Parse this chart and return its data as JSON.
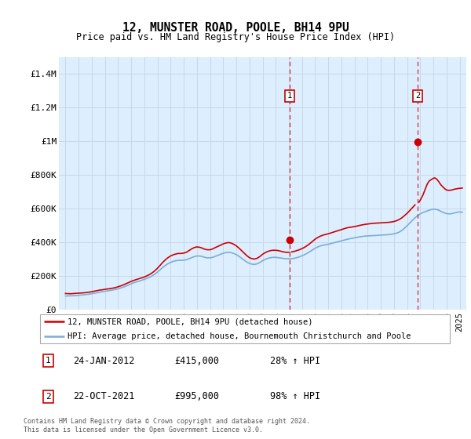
{
  "title": "12, MUNSTER ROAD, POOLE, BH14 9PU",
  "subtitle": "Price paid vs. HM Land Registry's House Price Index (HPI)",
  "legend_line1": "12, MUNSTER ROAD, POOLE, BH14 9PU (detached house)",
  "legend_line2": "HPI: Average price, detached house, Bournemouth Christchurch and Poole",
  "annotation1_date": "24-JAN-2012",
  "annotation1_price": "£415,000",
  "annotation1_hpi": "28% ↑ HPI",
  "annotation2_date": "22-OCT-2021",
  "annotation2_price": "£995,000",
  "annotation2_hpi": "98% ↑ HPI",
  "footer": "Contains HM Land Registry data © Crown copyright and database right 2024.\nThis data is licensed under the Open Government Licence v3.0.",
  "red_color": "#cc0000",
  "blue_color": "#7aaed6",
  "shade_color": "#ddeeff",
  "grid_color": "#c8d8e8",
  "ytick_labels": [
    "£0",
    "£200K",
    "£400K",
    "£600K",
    "£800K",
    "£1M",
    "£1.2M",
    "£1.4M"
  ],
  "yticks": [
    0,
    200000,
    400000,
    600000,
    800000,
    1000000,
    1200000,
    1400000
  ],
  "ylim": [
    0,
    1500000
  ],
  "xmin": 1994.5,
  "xmax": 2025.5,
  "sale1_x": 2012.07,
  "sale1_y": 415000,
  "sale2_x": 2021.81,
  "sale2_y": 995000,
  "shade_start": 2012.07,
  "hpi_red_line": [
    [
      1995.0,
      95000
    ],
    [
      1995.2,
      94000
    ],
    [
      1995.4,
      93500
    ],
    [
      1995.6,
      95000
    ],
    [
      1995.8,
      96000
    ],
    [
      1996.0,
      97000
    ],
    [
      1996.2,
      98000
    ],
    [
      1996.4,
      99000
    ],
    [
      1996.6,
      101000
    ],
    [
      1996.8,
      103000
    ],
    [
      1997.0,
      106000
    ],
    [
      1997.2,
      109000
    ],
    [
      1997.4,
      112000
    ],
    [
      1997.6,
      115000
    ],
    [
      1997.8,
      117000
    ],
    [
      1998.0,
      120000
    ],
    [
      1998.2,
      122000
    ],
    [
      1998.4,
      124000
    ],
    [
      1998.6,
      127000
    ],
    [
      1998.8,
      130000
    ],
    [
      1999.0,
      135000
    ],
    [
      1999.2,
      140000
    ],
    [
      1999.4,
      146000
    ],
    [
      1999.6,
      153000
    ],
    [
      1999.8,
      160000
    ],
    [
      2000.0,
      167000
    ],
    [
      2000.2,
      173000
    ],
    [
      2000.4,
      178000
    ],
    [
      2000.6,
      183000
    ],
    [
      2000.8,
      188000
    ],
    [
      2001.0,
      193000
    ],
    [
      2001.2,
      200000
    ],
    [
      2001.4,
      208000
    ],
    [
      2001.6,
      218000
    ],
    [
      2001.8,
      230000
    ],
    [
      2002.0,
      245000
    ],
    [
      2002.2,
      262000
    ],
    [
      2002.4,
      280000
    ],
    [
      2002.6,
      295000
    ],
    [
      2002.8,
      308000
    ],
    [
      2003.0,
      318000
    ],
    [
      2003.2,
      325000
    ],
    [
      2003.4,
      330000
    ],
    [
      2003.6,
      333000
    ],
    [
      2003.8,
      333000
    ],
    [
      2004.0,
      335000
    ],
    [
      2004.2,
      340000
    ],
    [
      2004.4,
      350000
    ],
    [
      2004.6,
      360000
    ],
    [
      2004.8,
      368000
    ],
    [
      2005.0,
      372000
    ],
    [
      2005.2,
      370000
    ],
    [
      2005.4,
      365000
    ],
    [
      2005.6,
      358000
    ],
    [
      2005.8,
      355000
    ],
    [
      2006.0,
      355000
    ],
    [
      2006.2,
      360000
    ],
    [
      2006.4,
      368000
    ],
    [
      2006.6,
      375000
    ],
    [
      2006.8,
      382000
    ],
    [
      2007.0,
      390000
    ],
    [
      2007.2,
      395000
    ],
    [
      2007.4,
      398000
    ],
    [
      2007.6,
      395000
    ],
    [
      2007.8,
      388000
    ],
    [
      2008.0,
      378000
    ],
    [
      2008.2,
      365000
    ],
    [
      2008.4,
      350000
    ],
    [
      2008.6,
      335000
    ],
    [
      2008.8,
      320000
    ],
    [
      2009.0,
      308000
    ],
    [
      2009.2,
      302000
    ],
    [
      2009.4,
      300000
    ],
    [
      2009.6,
      305000
    ],
    [
      2009.8,
      315000
    ],
    [
      2010.0,
      328000
    ],
    [
      2010.2,
      338000
    ],
    [
      2010.4,
      345000
    ],
    [
      2010.6,
      350000
    ],
    [
      2010.8,
      352000
    ],
    [
      2011.0,
      352000
    ],
    [
      2011.2,
      350000
    ],
    [
      2011.4,
      346000
    ],
    [
      2011.6,
      342000
    ],
    [
      2011.8,
      340000
    ],
    [
      2012.0,
      340000
    ],
    [
      2012.07,
      415000
    ],
    [
      2012.2,
      342000
    ],
    [
      2012.4,
      345000
    ],
    [
      2012.6,
      350000
    ],
    [
      2012.8,
      355000
    ],
    [
      2013.0,
      362000
    ],
    [
      2013.2,
      370000
    ],
    [
      2013.4,
      380000
    ],
    [
      2013.6,
      392000
    ],
    [
      2013.8,
      405000
    ],
    [
      2014.0,
      418000
    ],
    [
      2014.2,
      428000
    ],
    [
      2014.4,
      436000
    ],
    [
      2014.6,
      442000
    ],
    [
      2014.8,
      446000
    ],
    [
      2015.0,
      450000
    ],
    [
      2015.2,
      455000
    ],
    [
      2015.4,
      460000
    ],
    [
      2015.6,
      465000
    ],
    [
      2015.8,
      470000
    ],
    [
      2016.0,
      475000
    ],
    [
      2016.2,
      480000
    ],
    [
      2016.4,
      485000
    ],
    [
      2016.6,
      488000
    ],
    [
      2016.8,
      490000
    ],
    [
      2017.0,
      493000
    ],
    [
      2017.2,
      496000
    ],
    [
      2017.4,
      500000
    ],
    [
      2017.6,
      503000
    ],
    [
      2017.8,
      506000
    ],
    [
      2018.0,
      508000
    ],
    [
      2018.2,
      510000
    ],
    [
      2018.4,
      512000
    ],
    [
      2018.6,
      513000
    ],
    [
      2018.8,
      514000
    ],
    [
      2019.0,
      515000
    ],
    [
      2019.2,
      516000
    ],
    [
      2019.4,
      517000
    ],
    [
      2019.6,
      518000
    ],
    [
      2019.8,
      520000
    ],
    [
      2020.0,
      523000
    ],
    [
      2020.2,
      528000
    ],
    [
      2020.4,
      535000
    ],
    [
      2020.6,
      545000
    ],
    [
      2020.8,
      558000
    ],
    [
      2021.0,
      572000
    ],
    [
      2021.2,
      588000
    ],
    [
      2021.4,
      605000
    ],
    [
      2021.6,
      622000
    ],
    [
      2021.81,
      995000
    ],
    [
      2021.9,
      638000
    ],
    [
      2022.0,
      650000
    ],
    [
      2022.1,
      665000
    ],
    [
      2022.2,
      680000
    ],
    [
      2022.3,
      700000
    ],
    [
      2022.4,
      720000
    ],
    [
      2022.5,
      740000
    ],
    [
      2022.6,
      755000
    ],
    [
      2022.7,
      765000
    ],
    [
      2022.8,
      770000
    ],
    [
      2022.9,
      775000
    ],
    [
      2023.0,
      780000
    ],
    [
      2023.1,
      782000
    ],
    [
      2023.2,
      778000
    ],
    [
      2023.3,
      770000
    ],
    [
      2023.4,
      760000
    ],
    [
      2023.5,
      748000
    ],
    [
      2023.6,
      738000
    ],
    [
      2023.7,
      730000
    ],
    [
      2023.8,
      722000
    ],
    [
      2023.9,
      715000
    ],
    [
      2024.0,
      710000
    ],
    [
      2024.2,
      708000
    ],
    [
      2024.4,
      710000
    ],
    [
      2024.6,
      715000
    ],
    [
      2024.8,
      718000
    ],
    [
      2025.0,
      720000
    ],
    [
      2025.2,
      722000
    ]
  ],
  "hpi_blue_line": [
    [
      1995.0,
      80000
    ],
    [
      1995.2,
      80500
    ],
    [
      1995.4,
      80800
    ],
    [
      1995.6,
      81500
    ],
    [
      1995.8,
      82500
    ],
    [
      1996.0,
      84000
    ],
    [
      1996.2,
      85500
    ],
    [
      1996.4,
      87000
    ],
    [
      1996.6,
      89000
    ],
    [
      1996.8,
      91000
    ],
    [
      1997.0,
      94000
    ],
    [
      1997.2,
      97000
    ],
    [
      1997.4,
      100000
    ],
    [
      1997.6,
      103000
    ],
    [
      1997.8,
      105500
    ],
    [
      1998.0,
      108000
    ],
    [
      1998.2,
      110500
    ],
    [
      1998.4,
      113000
    ],
    [
      1998.6,
      116000
    ],
    [
      1998.8,
      119000
    ],
    [
      1999.0,
      123000
    ],
    [
      1999.2,
      128000
    ],
    [
      1999.4,
      133000
    ],
    [
      1999.6,
      139000
    ],
    [
      1999.8,
      146000
    ],
    [
      2000.0,
      153000
    ],
    [
      2000.2,
      159000
    ],
    [
      2000.4,
      164000
    ],
    [
      2000.6,
      169000
    ],
    [
      2000.8,
      174000
    ],
    [
      2001.0,
      179000
    ],
    [
      2001.2,
      185000
    ],
    [
      2001.4,
      192000
    ],
    [
      2001.6,
      200000
    ],
    [
      2001.8,
      210000
    ],
    [
      2002.0,
      222000
    ],
    [
      2002.2,
      236000
    ],
    [
      2002.4,
      250000
    ],
    [
      2002.6,
      262000
    ],
    [
      2002.8,
      272000
    ],
    [
      2003.0,
      280000
    ],
    [
      2003.2,
      286000
    ],
    [
      2003.4,
      290000
    ],
    [
      2003.6,
      292000
    ],
    [
      2003.8,
      292000
    ],
    [
      2004.0,
      293000
    ],
    [
      2004.2,
      296000
    ],
    [
      2004.4,
      302000
    ],
    [
      2004.6,
      308000
    ],
    [
      2004.8,
      314000
    ],
    [
      2005.0,
      318000
    ],
    [
      2005.2,
      318000
    ],
    [
      2005.4,
      315000
    ],
    [
      2005.6,
      310000
    ],
    [
      2005.8,
      307000
    ],
    [
      2006.0,
      307000
    ],
    [
      2006.2,
      310000
    ],
    [
      2006.4,
      316000
    ],
    [
      2006.6,
      322000
    ],
    [
      2006.8,
      328000
    ],
    [
      2007.0,
      334000
    ],
    [
      2007.2,
      338000
    ],
    [
      2007.4,
      340000
    ],
    [
      2007.6,
      338000
    ],
    [
      2007.8,
      333000
    ],
    [
      2008.0,
      326000
    ],
    [
      2008.2,
      316000
    ],
    [
      2008.4,
      305000
    ],
    [
      2008.6,
      293000
    ],
    [
      2008.8,
      282000
    ],
    [
      2009.0,
      274000
    ],
    [
      2009.2,
      269000
    ],
    [
      2009.4,
      268000
    ],
    [
      2009.6,
      272000
    ],
    [
      2009.8,
      280000
    ],
    [
      2010.0,
      290000
    ],
    [
      2010.2,
      298000
    ],
    [
      2010.4,
      304000
    ],
    [
      2010.6,
      308000
    ],
    [
      2010.8,
      310000
    ],
    [
      2011.0,
      310000
    ],
    [
      2011.2,
      308000
    ],
    [
      2011.4,
      306000
    ],
    [
      2011.6,
      303000
    ],
    [
      2011.8,
      302000
    ],
    [
      2012.0,
      302000
    ],
    [
      2012.2,
      302000
    ],
    [
      2012.4,
      304000
    ],
    [
      2012.6,
      308000
    ],
    [
      2012.8,
      313000
    ],
    [
      2013.0,
      319000
    ],
    [
      2013.2,
      326000
    ],
    [
      2013.4,
      335000
    ],
    [
      2013.6,
      344000
    ],
    [
      2013.8,
      354000
    ],
    [
      2014.0,
      364000
    ],
    [
      2014.2,
      372000
    ],
    [
      2014.4,
      378000
    ],
    [
      2014.6,
      382000
    ],
    [
      2014.8,
      385000
    ],
    [
      2015.0,
      388000
    ],
    [
      2015.2,
      392000
    ],
    [
      2015.4,
      396000
    ],
    [
      2015.6,
      400000
    ],
    [
      2015.8,
      404000
    ],
    [
      2016.0,
      408000
    ],
    [
      2016.2,
      412000
    ],
    [
      2016.4,
      416000
    ],
    [
      2016.6,
      420000
    ],
    [
      2016.8,
      423000
    ],
    [
      2017.0,
      426000
    ],
    [
      2017.2,
      429000
    ],
    [
      2017.4,
      432000
    ],
    [
      2017.6,
      434000
    ],
    [
      2017.8,
      436000
    ],
    [
      2018.0,
      437000
    ],
    [
      2018.2,
      438000
    ],
    [
      2018.4,
      439000
    ],
    [
      2018.6,
      440000
    ],
    [
      2018.8,
      441000
    ],
    [
      2019.0,
      442000
    ],
    [
      2019.2,
      443000
    ],
    [
      2019.4,
      444000
    ],
    [
      2019.6,
      445000
    ],
    [
      2019.8,
      447000
    ],
    [
      2020.0,
      450000
    ],
    [
      2020.2,
      454000
    ],
    [
      2020.4,
      460000
    ],
    [
      2020.6,
      470000
    ],
    [
      2020.8,
      483000
    ],
    [
      2021.0,
      498000
    ],
    [
      2021.2,
      514000
    ],
    [
      2021.4,
      530000
    ],
    [
      2021.6,
      545000
    ],
    [
      2021.8,
      558000
    ],
    [
      2022.0,
      568000
    ],
    [
      2022.2,
      576000
    ],
    [
      2022.4,
      582000
    ],
    [
      2022.6,
      588000
    ],
    [
      2022.8,
      593000
    ],
    [
      2023.0,
      596000
    ],
    [
      2023.2,
      595000
    ],
    [
      2023.4,
      590000
    ],
    [
      2023.6,
      582000
    ],
    [
      2023.8,
      575000
    ],
    [
      2024.0,
      570000
    ],
    [
      2024.2,
      568000
    ],
    [
      2024.4,
      570000
    ],
    [
      2024.6,
      574000
    ],
    [
      2024.8,
      578000
    ],
    [
      2025.0,
      580000
    ],
    [
      2025.2,
      578000
    ]
  ]
}
